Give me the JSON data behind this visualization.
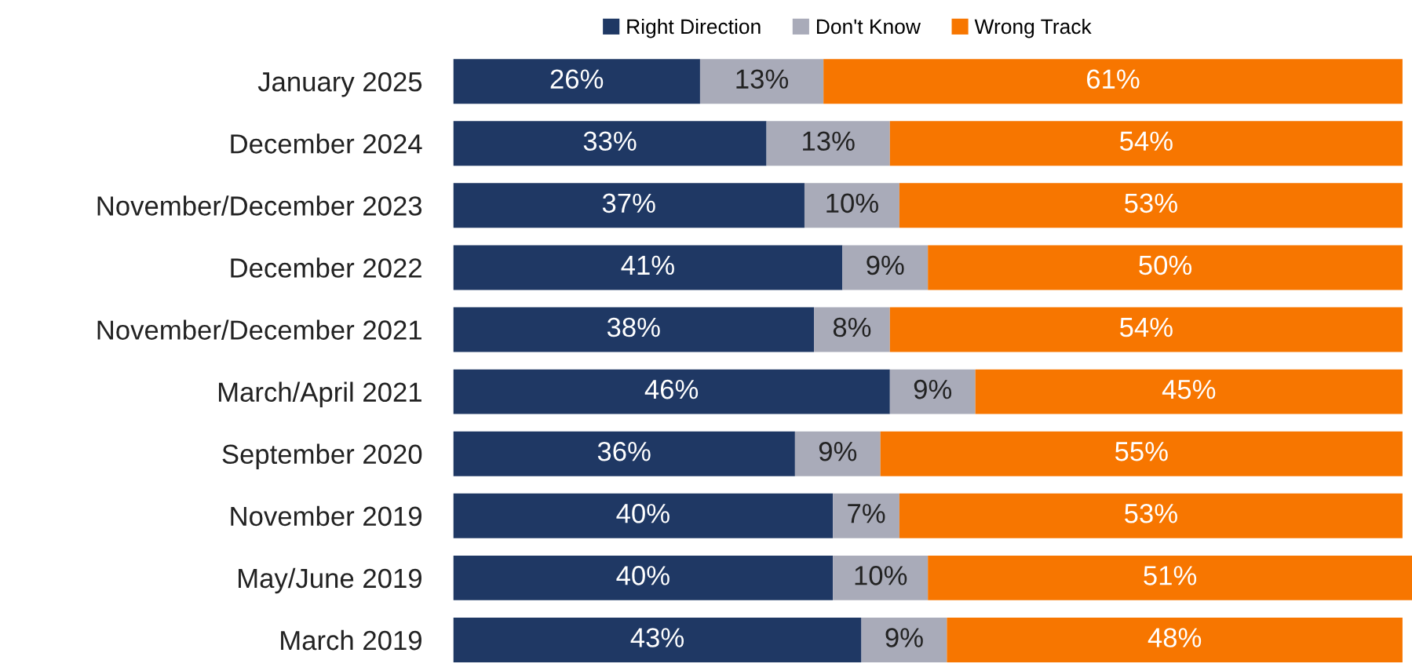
{
  "chart_data": {
    "type": "bar",
    "orientation": "horizontal",
    "stacked": true,
    "legend": "top",
    "grid": false,
    "categories": [
      "January 2025",
      "December 2024",
      "November/December 2023",
      "December 2022",
      "November/December 2021",
      "March/April 2021",
      "September 2020",
      "November 2019",
      "May/June 2019",
      "March 2019"
    ],
    "series": [
      {
        "name": "Right Direction",
        "color": "#1f3864",
        "values": [
          26,
          33,
          37,
          41,
          38,
          46,
          36,
          40,
          40,
          43
        ],
        "value_labels": [
          "26%",
          "33%",
          "37%",
          "41%",
          "38%",
          "46%",
          "36%",
          "40%",
          "40%",
          "43%"
        ]
      },
      {
        "name": "Don't Know",
        "color": "#a9abb9",
        "values": [
          13,
          13,
          10,
          9,
          8,
          9,
          9,
          7,
          10,
          9
        ],
        "value_labels": [
          "13%",
          "13%",
          "10%",
          "9%",
          "8%",
          "9%",
          "9%",
          "7%",
          "10%",
          "9%"
        ]
      },
      {
        "name": "Wrong Track",
        "color": "#f77600",
        "values": [
          61,
          54,
          53,
          50,
          54,
          45,
          55,
          53,
          51,
          48
        ],
        "value_labels": [
          "61%",
          "54%",
          "53%",
          "50%",
          "54%",
          "45%",
          "55%",
          "53%",
          "51%",
          "48%"
        ]
      }
    ]
  }
}
